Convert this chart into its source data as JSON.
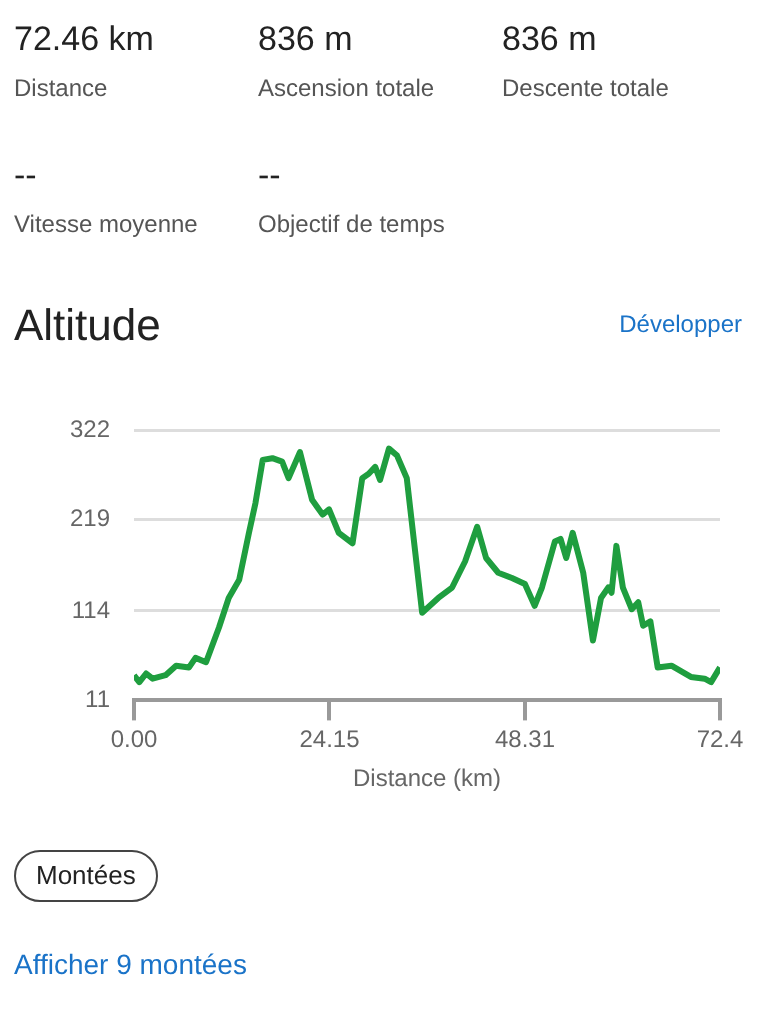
{
  "chart_data": {
    "type": "line",
    "title": "Altitude",
    "xlabel": "Distance (km)",
    "annotations": [
      "72.46 km",
      "Distance",
      "836 m",
      "Ascension totale",
      "836 m",
      "Descente totale",
      "--",
      "Vitesse moyenne",
      "--",
      "Objectif de temps",
      "Développer",
      "Montées",
      "Afficher 9 montées"
    ],
    "x": [
      0,
      0.66,
      1.5,
      2.3,
      3.9,
      5.2,
      6.8,
      7.6,
      8.9,
      10.5,
      11.7,
      13,
      14.2,
      15,
      15.9,
      17.1,
      18.3,
      19.1,
      20.5,
      22,
      23.3,
      24.1,
      25.3,
      27,
      28.2,
      29,
      29.8,
      30.4,
      31.5,
      32.5,
      33.7,
      35.6,
      37.6,
      39.3,
      40.9,
      42.4,
      43.5,
      45,
      46.7,
      48.3,
      49.5,
      50.4,
      52,
      52.7,
      53.4,
      54.2,
      55.5,
      56.7,
      57.7,
      58.6,
      59,
      59.6,
      60.4,
      61.5,
      62.3,
      62.9,
      63.8,
      64.7,
      66.4,
      68.8,
      70.5,
      71.3,
      72.4
    ],
    "series": [
      {
        "color": "#1f9e3f",
        "values": [
          40,
          32,
          42,
          36,
          40,
          51,
          49,
          60,
          55,
          95,
          129,
          150,
          204,
          238,
          288,
          290,
          286,
          267,
          297,
          242,
          225,
          231,
          204,
          192,
          267,
          272,
          280,
          265,
          301,
          293,
          267,
          112,
          129,
          141,
          171,
          211,
          175,
          158,
          152,
          145,
          120,
          141,
          194,
          197,
          175,
          204,
          158,
          80,
          129,
          141,
          135,
          189,
          141,
          116,
          124,
          97,
          102,
          49,
          51,
          38,
          36,
          32,
          49
        ]
      }
    ],
    "xlim": [
      0,
      72.4
    ],
    "xticks": [
      {
        "value": 0,
        "label": "0.00"
      },
      24.15,
      48.31,
      72.4
    ],
    "ylim": [
      11,
      322
    ],
    "yticks": [
      11,
      114,
      219,
      322
    ],
    "grid": "y",
    "marker": "none",
    "line_style": "solid",
    "legend": false
  }
}
